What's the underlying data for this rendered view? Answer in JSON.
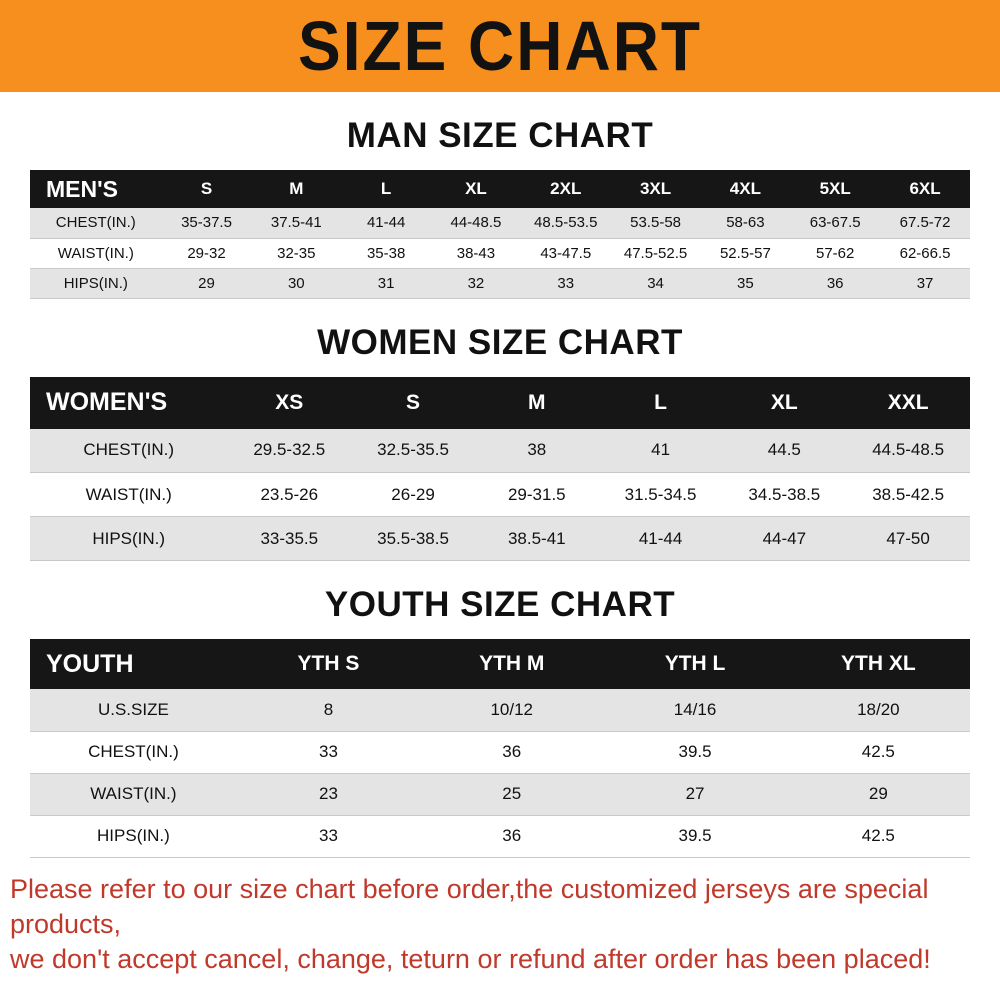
{
  "banner": {
    "title": "SIZE CHART"
  },
  "colors": {
    "banner_orange": "#f78f1e",
    "table_header_black": "#161616",
    "row_alt_gray": "#e4e4e4",
    "notice_red": "#c0392b"
  },
  "sections": [
    {
      "heading": "MAN SIZE CHART",
      "table": {
        "header": [
          "MEN'S",
          "S",
          "M",
          "L",
          "XL",
          "2XL",
          "3XL",
          "4XL",
          "5XL",
          "6XL"
        ],
        "rows": [
          [
            "CHEST(IN.)",
            "35-37.5",
            "37.5-41",
            "41-44",
            "44-48.5",
            "48.5-53.5",
            "53.5-58",
            "58-63",
            "63-67.5",
            "67.5-72"
          ],
          [
            "WAIST(IN.)",
            "29-32",
            "32-35",
            "35-38",
            "38-43",
            "43-47.5",
            "47.5-52.5",
            "52.5-57",
            "57-62",
            "62-66.5"
          ],
          [
            "HIPS(IN.)",
            "29",
            "30",
            "31",
            "32",
            "33",
            "34",
            "35",
            "36",
            "37"
          ]
        ]
      }
    },
    {
      "heading": "WOMEN SIZE CHART",
      "table": {
        "header": [
          "WOMEN'S",
          "XS",
          "S",
          "M",
          "L",
          "XL",
          "XXL"
        ],
        "rows": [
          [
            "CHEST(IN.)",
            "29.5-32.5",
            "32.5-35.5",
            "38",
            "41",
            "44.5",
            "44.5-48.5"
          ],
          [
            "WAIST(IN.)",
            "23.5-26",
            "26-29",
            "29-31.5",
            "31.5-34.5",
            "34.5-38.5",
            "38.5-42.5"
          ],
          [
            "HIPS(IN.)",
            "33-35.5",
            "35.5-38.5",
            "38.5-41",
            "41-44",
            "44-47",
            "47-50"
          ]
        ]
      }
    },
    {
      "heading": "YOUTH SIZE CHART",
      "table": {
        "header": [
          "YOUTH",
          "YTH S",
          "YTH M",
          "YTH L",
          "YTH XL"
        ],
        "rows": [
          [
            "U.S.SIZE",
            "8",
            "10/12",
            "14/16",
            "18/20"
          ],
          [
            "CHEST(IN.)",
            "33",
            "36",
            "39.5",
            "42.5"
          ],
          [
            "WAIST(IN.)",
            "23",
            "25",
            "27",
            "29"
          ],
          [
            "HIPS(IN.)",
            "33",
            "36",
            "39.5",
            "42.5"
          ]
        ]
      }
    }
  ],
  "footer": {
    "line1": "Please refer to our size chart before order,the customized jerseys are special products,",
    "line2": "we don't accept cancel, change, teturn or refund after order has been placed!"
  }
}
